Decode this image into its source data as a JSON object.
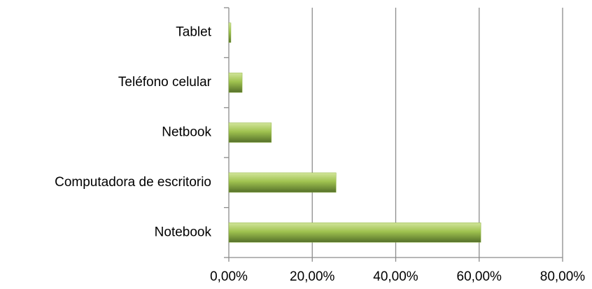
{
  "chart_data": {
    "type": "bar",
    "orientation": "horizontal",
    "categories": [
      "Notebook",
      "Computadora de escritorio",
      "Netbook",
      "Teléfono celular",
      "Tablet"
    ],
    "values": [
      60.4,
      25.7,
      10.2,
      3.2,
      0.5
    ],
    "color": "#8db33e",
    "xlim": [
      0,
      80
    ],
    "xticks": [
      {
        "value": 0,
        "label": "0,00%"
      },
      {
        "value": 20,
        "label": "20,00%"
      },
      {
        "value": 40,
        "label": "40,00%"
      },
      {
        "value": 60,
        "label": "60,00%"
      },
      {
        "value": 80,
        "label": "80,00%"
      }
    ],
    "grid": true
  }
}
